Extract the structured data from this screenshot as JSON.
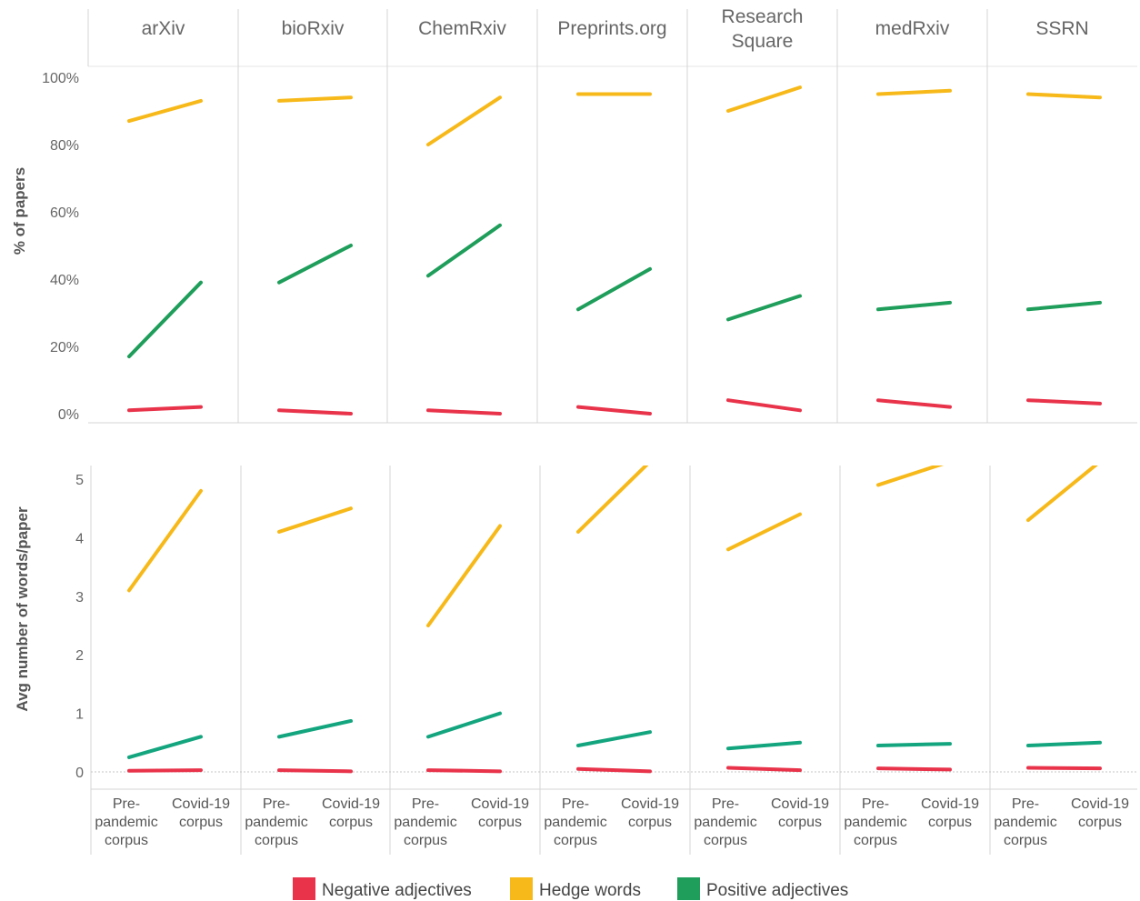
{
  "chart_data": {
    "type": "line",
    "panels": [
      "arXiv",
      "bioRxiv",
      "ChemRxiv",
      "Preprints.org",
      "Research Square",
      "medRxiv",
      "SSRN"
    ],
    "categories": [
      "Pre-pandemic corpus",
      "Covid-19 corpus"
    ],
    "category_lines": [
      [
        "Pre-",
        "pandemic",
        "corpus"
      ],
      [
        "Covid-19",
        "corpus"
      ]
    ],
    "legend": {
      "placement": "bottom",
      "items": [
        {
          "key": "negative",
          "label": "Negative adjectives",
          "color": "#e8334a"
        },
        {
          "key": "hedge",
          "label": "Hedge words",
          "color": "#f7b919"
        },
        {
          "key": "positive",
          "label": "Positive adjectives",
          "color": "#1e9e5a"
        }
      ]
    },
    "charts": [
      {
        "ylabel": "% of papers",
        "ylim": [
          0,
          100
        ],
        "yticks": [
          0,
          20,
          40,
          60,
          80,
          100
        ],
        "ytick_labels": [
          "0%",
          "20%",
          "40%",
          "60%",
          "80%",
          "100%"
        ],
        "series": [
          {
            "key": "hedge",
            "color": "#f7b919",
            "values": [
              [
                87,
                93
              ],
              [
                93,
                94
              ],
              [
                80,
                94
              ],
              [
                95,
                95
              ],
              [
                90,
                97
              ],
              [
                95,
                96
              ],
              [
                95,
                94
              ]
            ]
          },
          {
            "key": "positive",
            "color": "#1e9e5a",
            "values": [
              [
                17,
                39
              ],
              [
                39,
                50
              ],
              [
                41,
                56
              ],
              [
                31,
                43
              ],
              [
                28,
                35
              ],
              [
                31,
                33
              ],
              [
                31,
                33
              ]
            ]
          },
          {
            "key": "negative",
            "color": "#e8334a",
            "values": [
              [
                1,
                2
              ],
              [
                1,
                0
              ],
              [
                1,
                0
              ],
              [
                2,
                0
              ],
              [
                4,
                1
              ],
              [
                4,
                2
              ],
              [
                4,
                3
              ]
            ]
          }
        ]
      },
      {
        "ylabel": "Avg number of words/paper",
        "ylim": [
          -0.25,
          5.2
        ],
        "yticks": [
          0,
          1,
          2,
          3,
          4,
          5
        ],
        "ytick_labels": [
          "0",
          "1",
          "2",
          "3",
          "4",
          "5"
        ],
        "zero_line": true,
        "series": [
          {
            "key": "hedge",
            "color": "#f7b919",
            "values": [
              [
                3.1,
                4.8
              ],
              [
                4.1,
                4.5
              ],
              [
                2.5,
                4.2
              ],
              [
                4.1,
                5.3
              ],
              [
                3.8,
                4.4
              ],
              [
                4.9,
                5.3
              ],
              [
                4.3,
                5.3
              ]
            ]
          },
          {
            "key": "positive",
            "color": "#13a57e",
            "values": [
              [
                0.25,
                0.6
              ],
              [
                0.6,
                0.87
              ],
              [
                0.6,
                1.0
              ],
              [
                0.45,
                0.68
              ],
              [
                0.4,
                0.5
              ],
              [
                0.45,
                0.48
              ],
              [
                0.45,
                0.5
              ]
            ]
          },
          {
            "key": "negative",
            "color": "#e8334a",
            "values": [
              [
                0.02,
                0.03
              ],
              [
                0.03,
                0.01
              ],
              [
                0.03,
                0.01
              ],
              [
                0.05,
                0.01
              ],
              [
                0.07,
                0.03
              ],
              [
                0.06,
                0.04
              ],
              [
                0.07,
                0.06
              ]
            ]
          }
        ]
      }
    ]
  }
}
